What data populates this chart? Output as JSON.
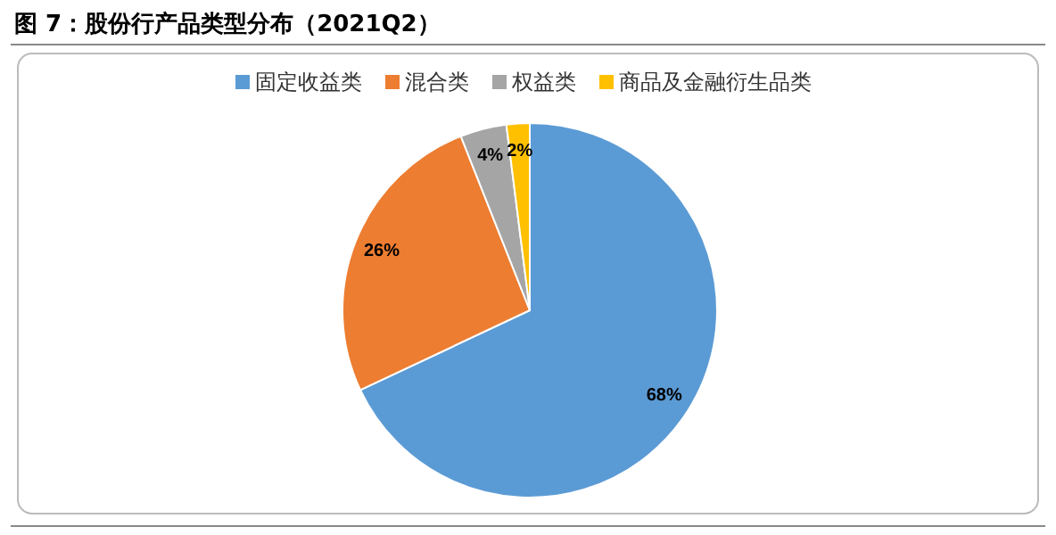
{
  "chart_data": {
    "type": "pie",
    "title": "图 7：股份行产品类型分布（2021Q2）",
    "categories": [
      "固定收益类",
      "混合类",
      "权益类",
      "商品及金融衍生品类"
    ],
    "values": [
      68,
      26,
      4,
      2
    ],
    "colors": [
      "#5b9bd5",
      "#ed7d31",
      "#a5a5a5",
      "#ffc000"
    ],
    "value_labels": [
      "68%",
      "26%",
      "4%",
      "2%"
    ],
    "legend": "top"
  }
}
